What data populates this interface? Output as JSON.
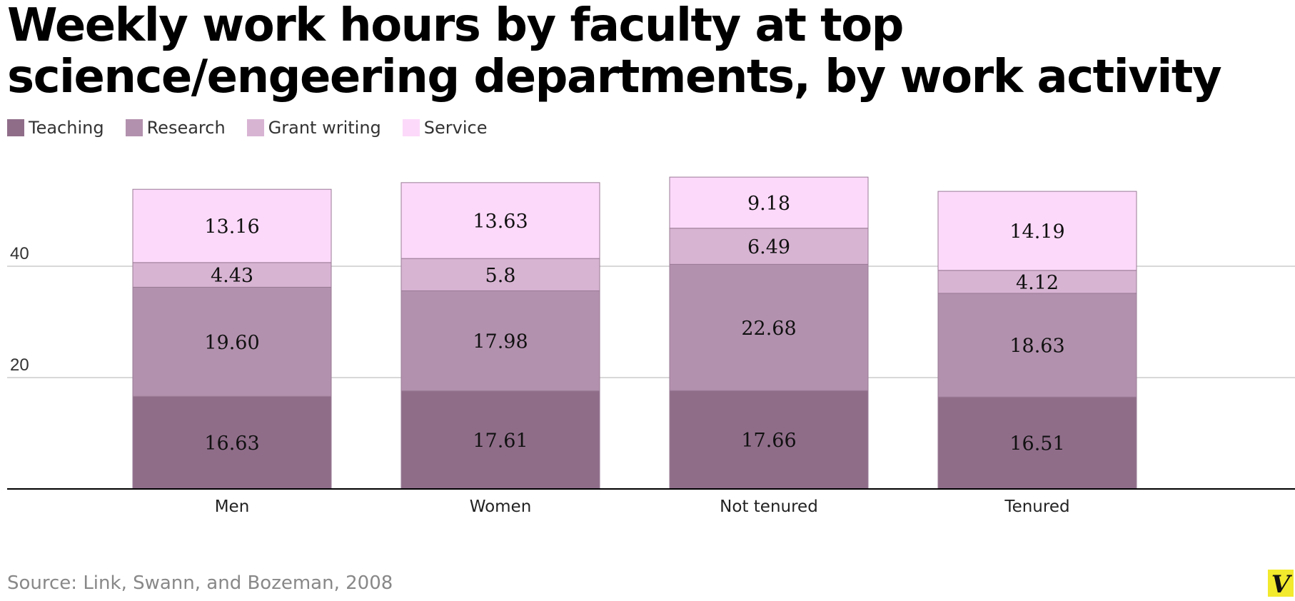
{
  "title": "Weekly work hours by faculty at top science/engeering departments, by work activity",
  "source": "Source: Link, Swann, and Bozeman, 2008",
  "logo_text": "V",
  "colors": {
    "Teaching": "#8f6d89",
    "Research": "#b291ae",
    "Grant writing": "#d8b4d3",
    "Service": "#fcd9fa",
    "grid": "#cccccc",
    "baseline": "#000000",
    "logo_bg": "#f2ea2c"
  },
  "chart_data": {
    "type": "bar",
    "stacked": true,
    "categories": [
      "Men",
      "Women",
      "Not tenured",
      "Tenured"
    ],
    "series": [
      {
        "name": "Teaching",
        "values": [
          16.63,
          17.61,
          17.66,
          16.51
        ],
        "labels": [
          "16.63",
          "17.61",
          "17.66",
          "16.51"
        ]
      },
      {
        "name": "Research",
        "values": [
          19.6,
          17.98,
          22.68,
          18.63
        ],
        "labels": [
          "19.60",
          "17.98",
          "22.68",
          "18.63"
        ]
      },
      {
        "name": "Grant writing",
        "values": [
          4.43,
          5.8,
          6.49,
          4.12
        ],
        "labels": [
          "4.43",
          "5.8",
          "6.49",
          "4.12"
        ]
      },
      {
        "name": "Service",
        "values": [
          13.16,
          13.63,
          9.18,
          14.19
        ],
        "labels": [
          "13.16",
          "13.63",
          "9.18",
          "14.19"
        ]
      }
    ],
    "yticks": [
      20,
      40
    ],
    "ylim": [
      0,
      60
    ],
    "grid": true,
    "legend_position": "top-left"
  }
}
